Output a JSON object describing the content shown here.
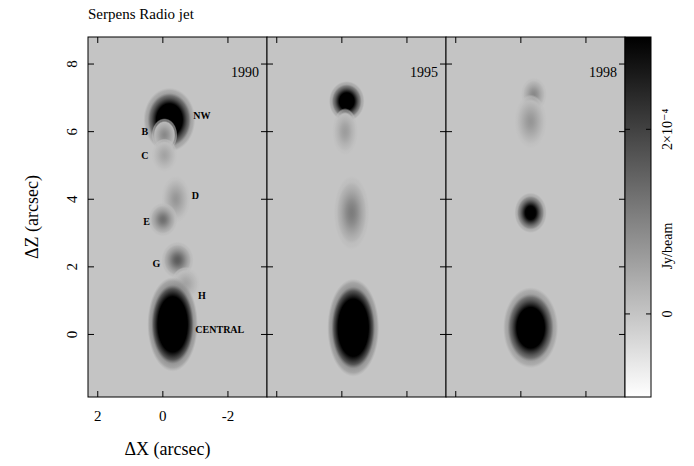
{
  "chart_data": {
    "type": "image",
    "title": "Serpens Radio jet",
    "x_label": "ΔX (arcsec)",
    "y_label": "ΔZ (arcsec)",
    "xlim": [
      2.3,
      -3.2
    ],
    "ylim": [
      -1.85,
      8.8
    ],
    "xticks": [
      2,
      0,
      -2
    ],
    "yticks": [
      0,
      2,
      4,
      6,
      8
    ],
    "background": 0,
    "colorbar": {
      "label": "Jy/beam",
      "lim": [
        -9e-05,
        0.0003
      ],
      "ticks": [
        0,
        {
          "value": 0.0002,
          "label": "2×10⁻⁴"
        }
      ]
    },
    "panels": [
      {
        "title": "1990",
        "sources": [
          {
            "label": "NW",
            "x": -0.2,
            "z": 6.35,
            "peak": 0.0006,
            "major": 0.95,
            "minor": 0.8,
            "label_x": -1.2,
            "label_z": 6.45
          },
          {
            "label": "B",
            "x": -0.05,
            "z": 5.9,
            "peak": 9e-05,
            "major": 0.5,
            "minor": 0.4,
            "label_x": 0.55,
            "label_z": 5.98
          },
          {
            "label": "C",
            "x": -0.05,
            "z": 5.3,
            "peak": 5e-05,
            "major": 0.5,
            "minor": 0.4,
            "label_x": 0.55,
            "label_z": 5.27
          },
          {
            "label": "D",
            "x": -0.4,
            "z": 4.0,
            "peak": 7e-05,
            "major": 0.7,
            "minor": 0.45,
            "label_x": -1.0,
            "label_z": 4.09
          },
          {
            "label": "E",
            "x": 0.0,
            "z": 3.4,
            "peak": 0.00013,
            "major": 0.5,
            "minor": 0.45,
            "label_x": 0.5,
            "label_z": 3.32
          },
          {
            "label": "G",
            "x": -0.45,
            "z": 2.2,
            "peak": 0.00016,
            "major": 0.55,
            "minor": 0.5,
            "label_x": 0.2,
            "label_z": 2.07
          },
          {
            "label": "H",
            "x": -0.7,
            "z": 1.5,
            "peak": 5e-05,
            "major": 0.5,
            "minor": 0.45,
            "label_x": -1.2,
            "label_z": 1.13
          },
          {
            "label": "CENTRAL",
            "x": -0.3,
            "z": 0.3,
            "peak": 0.0008,
            "major": 1.4,
            "minor": 0.78,
            "label_x": -1.75,
            "label_z": 0.1
          }
        ]
      },
      {
        "title": "1995",
        "sources": [
          {
            "x": -0.15,
            "z": 6.9,
            "peak": 0.0005,
            "major": 0.6,
            "minor": 0.55
          },
          {
            "x": -0.1,
            "z": 6.0,
            "peak": 6e-05,
            "major": 0.7,
            "minor": 0.4
          },
          {
            "x": -0.3,
            "z": 3.6,
            "peak": 0.00011,
            "major": 1.1,
            "minor": 0.55
          },
          {
            "x": -0.35,
            "z": 0.2,
            "peak": 0.0008,
            "major": 1.45,
            "minor": 0.8
          }
        ]
      },
      {
        "title": "1998",
        "sources": [
          {
            "x": -0.4,
            "z": 7.1,
            "peak": 9e-05,
            "major": 0.5,
            "minor": 0.4
          },
          {
            "x": -0.3,
            "z": 6.3,
            "peak": 7e-05,
            "major": 0.8,
            "minor": 0.5
          },
          {
            "x": -0.3,
            "z": 3.6,
            "peak": 0.0004,
            "major": 0.6,
            "minor": 0.5
          },
          {
            "x": -0.3,
            "z": 0.2,
            "peak": 0.0006,
            "major": 1.2,
            "minor": 0.85
          }
        ]
      }
    ]
  }
}
